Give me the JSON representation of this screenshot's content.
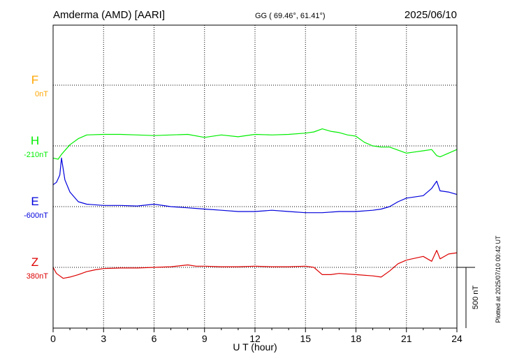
{
  "header": {
    "station": "Amderma (AMD)  [AARI]",
    "coords": "GG ( 69.46°,  61.41°)",
    "date": "2025/06/10"
  },
  "footer": {
    "plotted_note": "Plotted at 2025/07/10 00:42 UT",
    "scale_label": "500 nT"
  },
  "colors": {
    "F": "#ffa500",
    "H": "#00ee00",
    "E": "#0000dd",
    "Z": "#dd0000",
    "axis": "#000000"
  },
  "chart_data": {
    "type": "line",
    "xlabel": "U T (hour)",
    "xlim": [
      0,
      24
    ],
    "xticks": [
      0,
      3,
      6,
      9,
      12,
      15,
      18,
      21,
      24
    ],
    "scale_bar_nT": 500,
    "grid": true,
    "series": [
      {
        "name": "F",
        "baseline_label": "0nT",
        "baseline_nT": 0,
        "x": [],
        "y": []
      },
      {
        "name": "H",
        "baseline_label": "-210nT",
        "baseline_nT": -210,
        "x": [
          0,
          0.3,
          0.5,
          1.0,
          1.5,
          2.0,
          3.0,
          4.0,
          5.0,
          6.0,
          7.0,
          8.0,
          9.0,
          10.0,
          11.0,
          12.0,
          13.0,
          14.0,
          15.0,
          15.5,
          16.0,
          16.5,
          17.0,
          17.5,
          18.0,
          18.5,
          19.0,
          19.5,
          20.0,
          21.0,
          21.5,
          22.0,
          22.5,
          22.8,
          23.0,
          23.5,
          24.0
        ],
        "y": [
          -310,
          -320,
          -280,
          -200,
          -150,
          -120,
          -115,
          -115,
          -120,
          -125,
          -120,
          -115,
          -140,
          -120,
          -135,
          -115,
          -120,
          -115,
          -105,
          -95,
          -70,
          -90,
          -100,
          -120,
          -130,
          -180,
          -210,
          -220,
          -220,
          -270,
          -260,
          -250,
          -240,
          -290,
          -300,
          -270,
          -240
        ]
      },
      {
        "name": "E",
        "baseline_label": "-600nT",
        "baseline_nT": -600,
        "x": [
          0,
          0.2,
          0.4,
          0.5,
          0.7,
          1.0,
          1.5,
          2.0,
          3.0,
          4.0,
          5.0,
          6.0,
          7.0,
          8.0,
          9.0,
          10.0,
          11.0,
          12.0,
          13.0,
          14.0,
          15.0,
          16.0,
          17.0,
          18.0,
          19.0,
          19.5,
          20.0,
          20.5,
          21.0,
          22.0,
          22.5,
          22.8,
          23.0,
          23.5,
          24.0
        ],
        "y": [
          -420,
          -400,
          -340,
          -200,
          -380,
          -480,
          -560,
          -580,
          -590,
          -590,
          -595,
          -580,
          -600,
          -610,
          -620,
          -630,
          -640,
          -640,
          -630,
          -640,
          -650,
          -650,
          -640,
          -640,
          -630,
          -620,
          -600,
          -560,
          -530,
          -510,
          -450,
          -390,
          -470,
          -480,
          -500
        ]
      },
      {
        "name": "Z",
        "baseline_label": "380nT",
        "baseline_nT": 380,
        "x": [
          0,
          0.2,
          0.4,
          0.6,
          1.0,
          1.5,
          2.0,
          2.5,
          3.0,
          4.0,
          5.0,
          6.0,
          7.0,
          8.0,
          8.5,
          9.0,
          10.0,
          11.0,
          12.0,
          13.0,
          14.0,
          15.0,
          15.5,
          16.0,
          16.5,
          17.0,
          18.0,
          19.0,
          19.5,
          20.0,
          20.5,
          21.0,
          22.0,
          22.5,
          22.8,
          23.0,
          23.5,
          24.0
        ],
        "y": [
          380,
          330,
          310,
          290,
          300,
          320,
          345,
          360,
          370,
          375,
          375,
          380,
          385,
          400,
          390,
          390,
          385,
          385,
          390,
          385,
          385,
          390,
          380,
          320,
          320,
          330,
          320,
          310,
          300,
          350,
          410,
          440,
          470,
          430,
          520,
          450,
          490,
          500
        ]
      }
    ]
  }
}
